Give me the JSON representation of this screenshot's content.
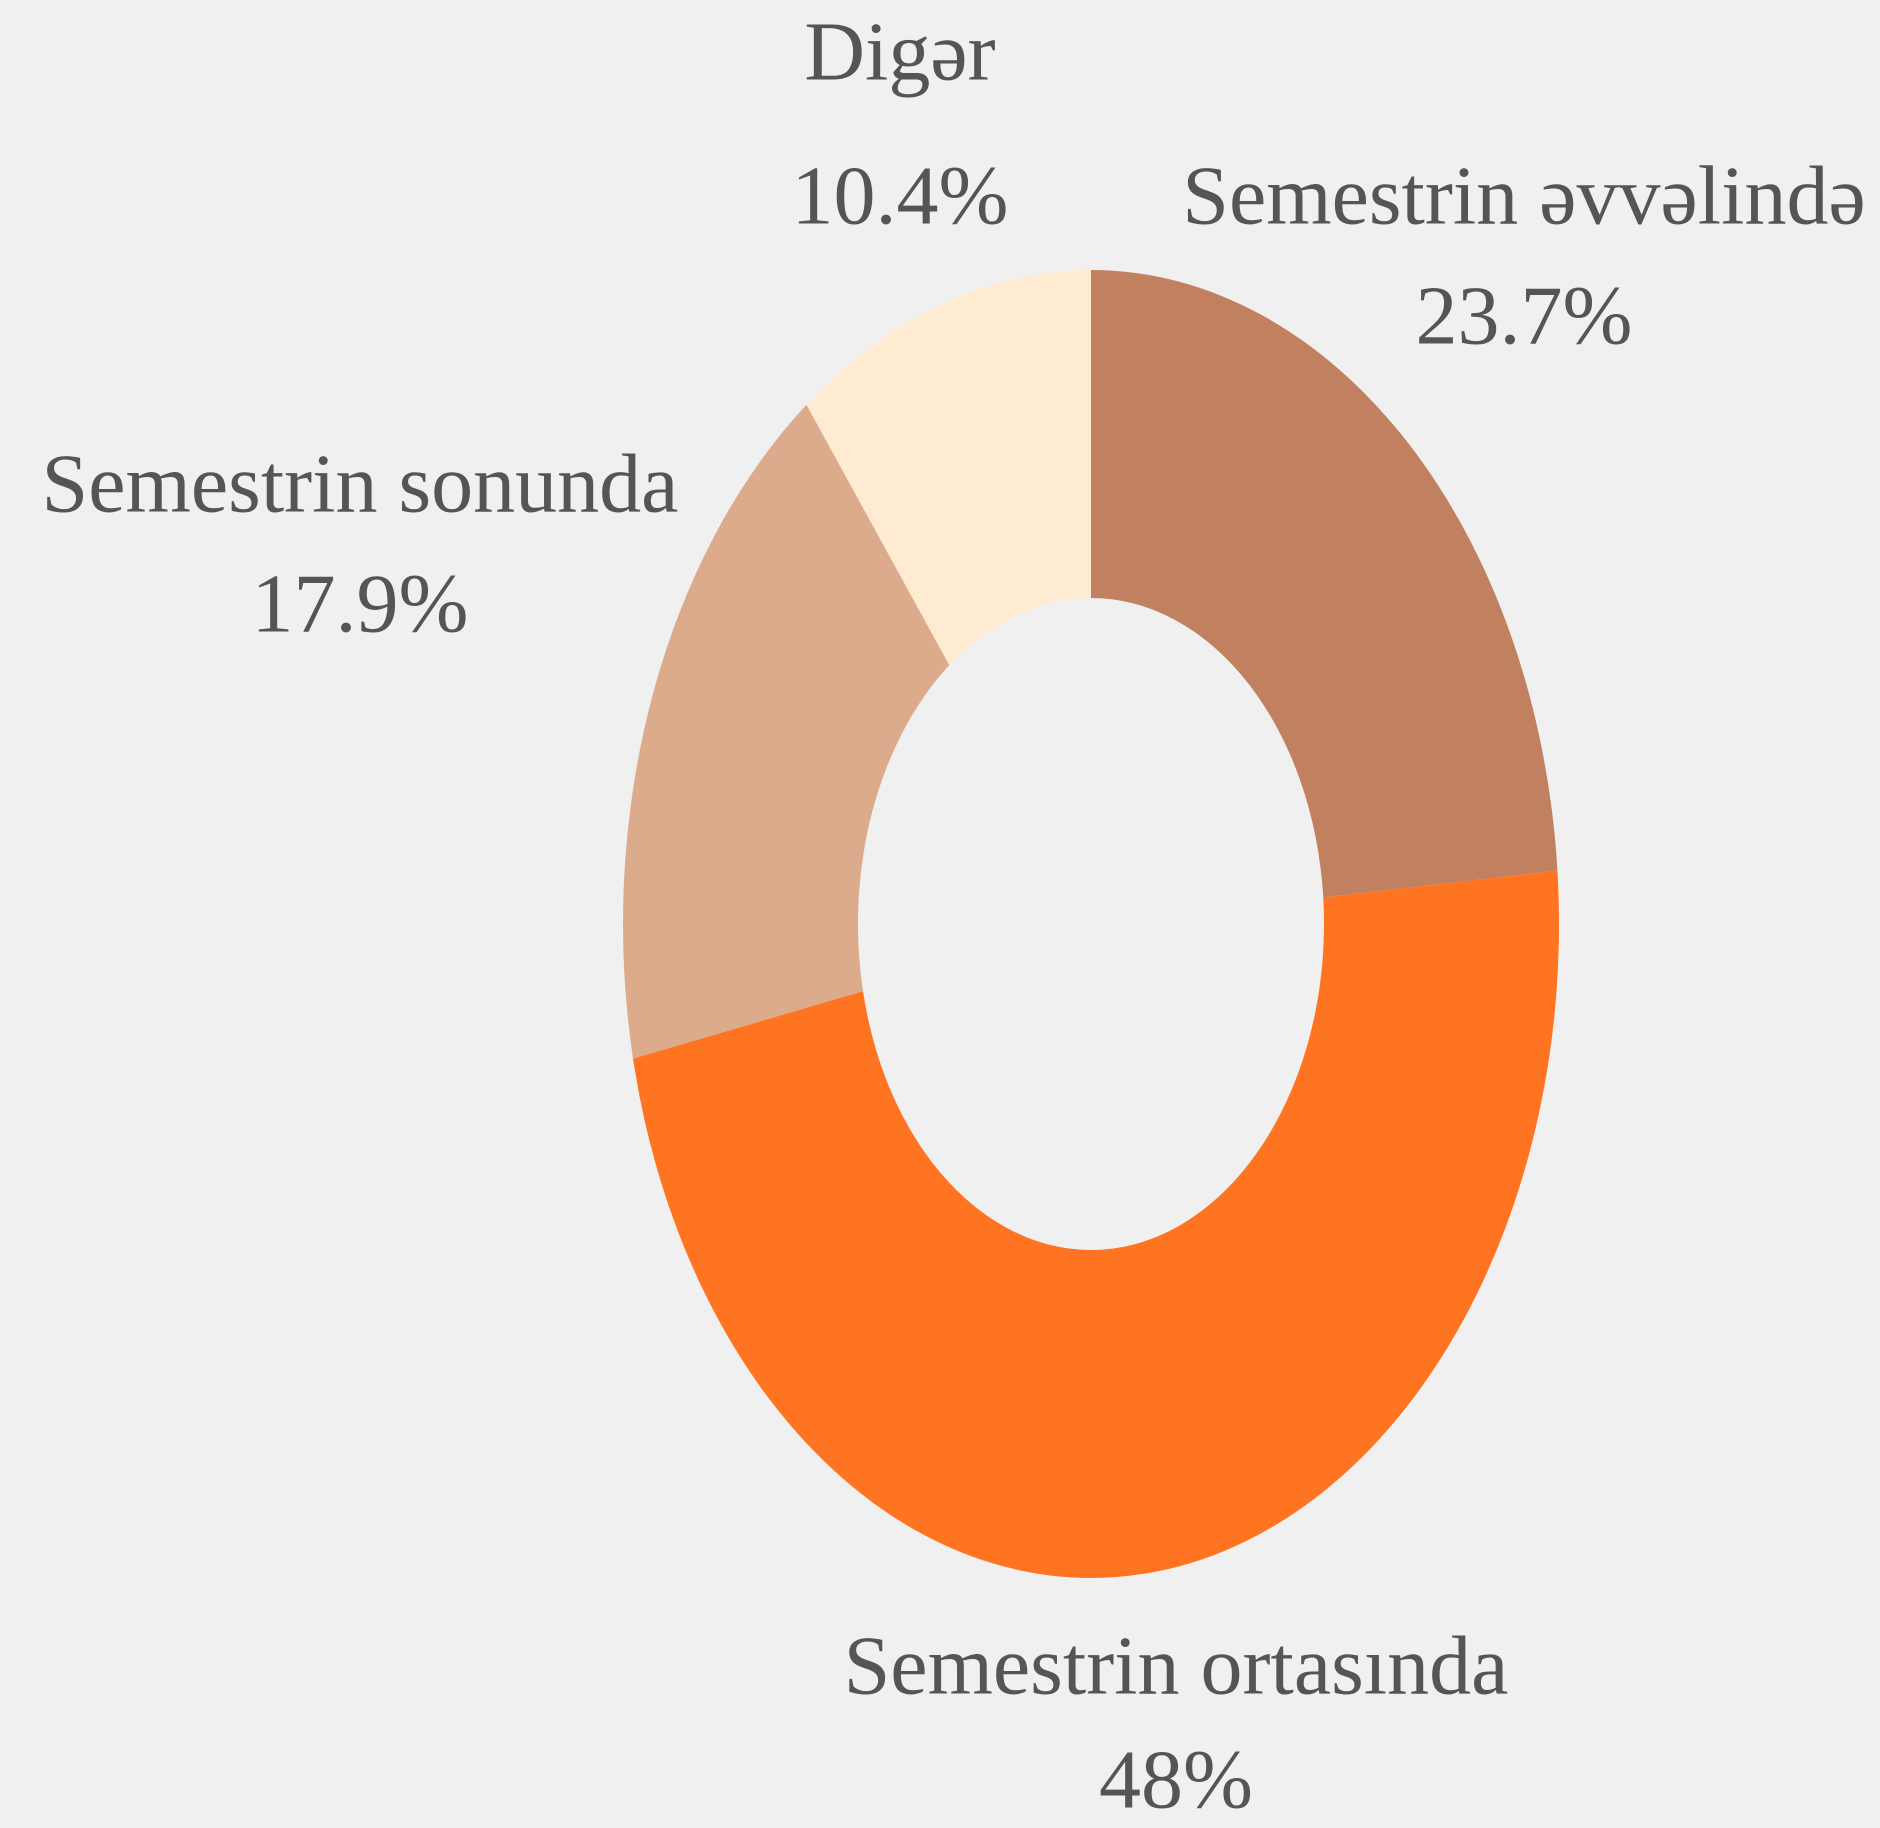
{
  "chart_data": {
    "type": "pie",
    "categories": [
      "Semestrin əvvəlində",
      "Semestrin ortasında",
      "Semestrin sonunda",
      "Digər"
    ],
    "values": [
      23.7,
      48,
      17.9,
      10.4
    ],
    "value_labels": [
      "23.7%",
      "48%",
      "17.9%",
      "10.4%"
    ],
    "colors": [
      "#c18160",
      "#ff7420",
      "#dbab8b",
      "#ffead2"
    ]
  }
}
